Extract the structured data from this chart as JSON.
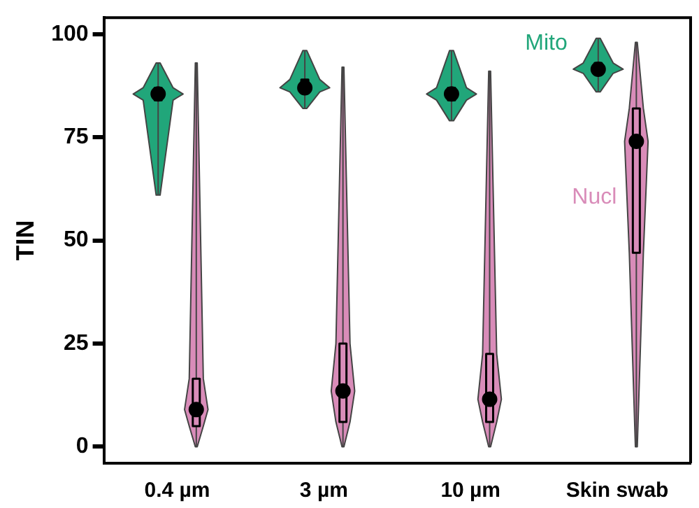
{
  "chart_data": {
    "type": "box",
    "ylabel": "TIN",
    "categories": [
      "0.4 µm",
      "3 µm",
      "10 µm",
      "Skin swab"
    ],
    "ylim": [
      -4,
      104
    ],
    "yticks": [
      0,
      25,
      50,
      75,
      100
    ],
    "grid": false,
    "legend": false,
    "series": [
      {
        "name": "Mito",
        "color": "#21a67a",
        "boxes": [
          {
            "low": 61,
            "q1": 84,
            "median": 85.5,
            "q3": 87,
            "high": 93
          },
          {
            "low": 82,
            "q1": 86,
            "median": 87,
            "q3": 89,
            "high": 96
          },
          {
            "low": 79,
            "q1": 84,
            "median": 85.5,
            "q3": 87,
            "high": 96
          },
          {
            "low": 86,
            "q1": 90.5,
            "median": 91.5,
            "q3": 93,
            "high": 99
          }
        ]
      },
      {
        "name": "Nucl",
        "color": "#d98cb9",
        "boxes": [
          {
            "low": 0,
            "q1": 5,
            "median": 9,
            "q3": 16.5,
            "high": 93
          },
          {
            "low": 0,
            "q1": 6,
            "median": 13.5,
            "q3": 25,
            "high": 92
          },
          {
            "low": 0,
            "q1": 6,
            "median": 11.5,
            "q3": 22.5,
            "high": 91
          },
          {
            "low": 0,
            "q1": 47,
            "median": 74,
            "q3": 82,
            "high": 98
          }
        ]
      }
    ]
  }
}
